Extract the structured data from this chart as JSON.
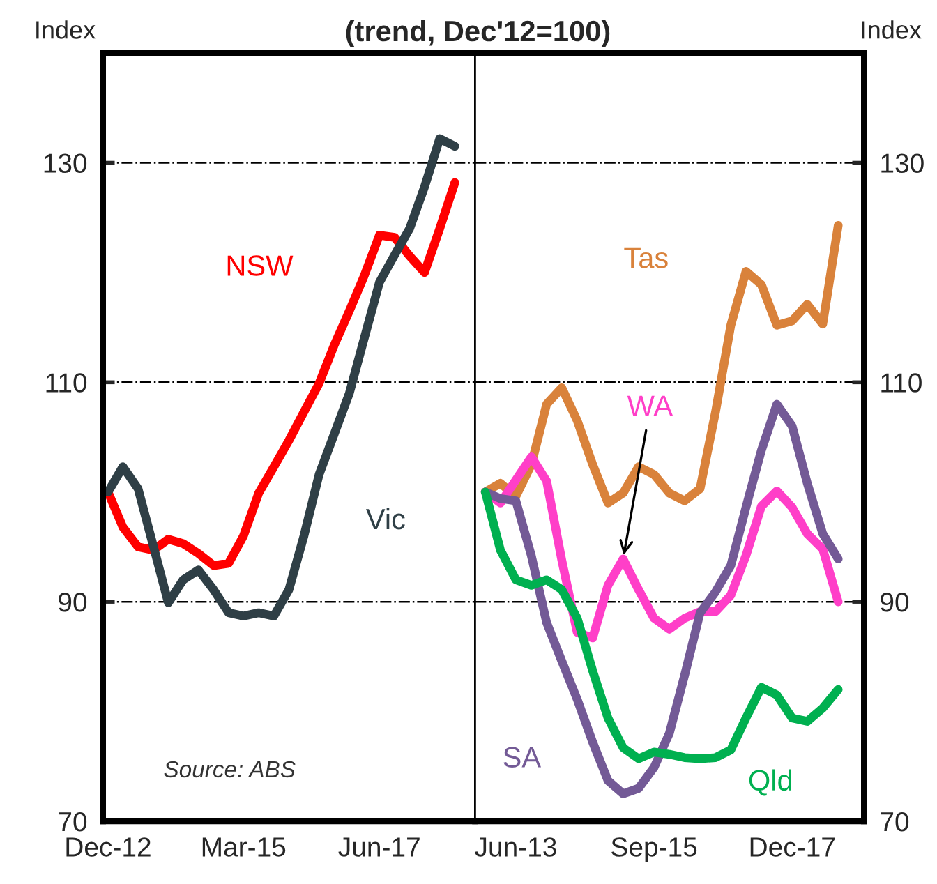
{
  "chart_data": [
    {
      "type": "line",
      "title": "(trend, Dec'12=100)",
      "ylabel": "Index",
      "x": [
        "2012-12",
        "2013-03",
        "2013-06",
        "2013-09",
        "2013-12",
        "2014-03",
        "2014-06",
        "2014-09",
        "2014-12",
        "2015-03",
        "2015-06",
        "2015-09",
        "2015-12",
        "2016-03",
        "2016-06",
        "2016-09",
        "2016-12",
        "2017-03",
        "2017-06",
        "2017-09",
        "2017-12",
        "2018-03",
        "2018-06",
        "2018-09"
      ],
      "series": [
        {
          "name": "NSW",
          "color": "#ff0000",
          "values": [
            100,
            96.8,
            95,
            94.7,
            95.7,
            95.3,
            94.4,
            93.3,
            93.5,
            96,
            99.9,
            102.3,
            104.7,
            107.3,
            109.9,
            113.4,
            116.5,
            119.7,
            123.4,
            123.2,
            121.5,
            120,
            124,
            128.2
          ]
        },
        {
          "name": "Vic",
          "color": "#2f3f46",
          "values": [
            100,
            102.3,
            100.3,
            95.1,
            89.9,
            92,
            92.9,
            91.1,
            89,
            88.7,
            89,
            88.7,
            91.1,
            96,
            101.6,
            105.3,
            109,
            114,
            119.1,
            121.6,
            124,
            127.8,
            132.2,
            131.5
          ]
        }
      ],
      "xlim": [
        "2012-11",
        "2019-01"
      ],
      "xticks": [
        {
          "value": "2012-12",
          "label": "Dec-12"
        },
        {
          "value": "2015-03",
          "label": "Mar-15"
        },
        {
          "value": "2017-06",
          "label": "Jun-17"
        }
      ],
      "ylim": [
        70,
        140
      ],
      "yticks": [
        70,
        90,
        110,
        130
      ],
      "grid": "y",
      "line_style": "solid",
      "marker": "none",
      "annotations": [
        "Source: ABS"
      ]
    },
    {
      "type": "line",
      "ylabel": "Index",
      "x": [
        "2012-12",
        "2013-03",
        "2013-06",
        "2013-09",
        "2013-12",
        "2014-03",
        "2014-06",
        "2014-09",
        "2014-12",
        "2015-03",
        "2015-06",
        "2015-09",
        "2015-12",
        "2016-03",
        "2016-06",
        "2016-09",
        "2016-12",
        "2017-03",
        "2017-06",
        "2017-09",
        "2017-12",
        "2018-03",
        "2018-06",
        "2018-09"
      ],
      "series": [
        {
          "name": "Tas",
          "color": "#d9823b",
          "values": [
            100,
            100.8,
            99.6,
            102.5,
            108,
            109.5,
            106.5,
            102.5,
            99,
            99.9,
            102.3,
            101.6,
            99.9,
            99.2,
            100.3,
            107.3,
            115.2,
            120.1,
            118.9,
            115.2,
            115.6,
            117.1,
            115.3,
            124.3
          ]
        },
        {
          "name": "WA",
          "color": "#ff3fc8",
          "values": [
            100,
            99,
            101.1,
            103.2,
            101,
            93.8,
            87.2,
            86.7,
            91.5,
            93.9,
            91.1,
            88.5,
            87.5,
            88.5,
            89.1,
            89.1,
            90.6,
            94.2,
            98.7,
            100.1,
            98.6,
            96.2,
            94.8,
            90
          ]
        },
        {
          "name": "SA",
          "color": "#735a96",
          "values": [
            100,
            99.4,
            99.2,
            94.2,
            88.1,
            84.6,
            81.1,
            77.2,
            73.7,
            72.5,
            73,
            74.9,
            78,
            83.3,
            89,
            90.9,
            93.3,
            98.6,
            103.8,
            108,
            106,
            100.8,
            96.2,
            93.9
          ]
        },
        {
          "name": "Qld",
          "color": "#00b050",
          "values": [
            100,
            94.7,
            92,
            91.5,
            92,
            91.1,
            88.5,
            83.7,
            79.4,
            76.7,
            75.7,
            76.3,
            76.1,
            75.8,
            75.7,
            75.8,
            76.5,
            79.4,
            82.2,
            81.5,
            79.4,
            79.1,
            80.3,
            82
          ]
        }
      ],
      "xlim": [
        "2012-10",
        "2019-02"
      ],
      "xticks": [
        {
          "value": "2013-06",
          "label": "Jun-13"
        },
        {
          "value": "2015-09",
          "label": "Sep-15"
        },
        {
          "value": "2017-12",
          "label": "Dec-17"
        }
      ],
      "ylim": [
        70,
        140
      ],
      "yticks": [
        70,
        90,
        110,
        130
      ],
      "grid": "y",
      "line_style": "solid",
      "marker": "none"
    }
  ]
}
